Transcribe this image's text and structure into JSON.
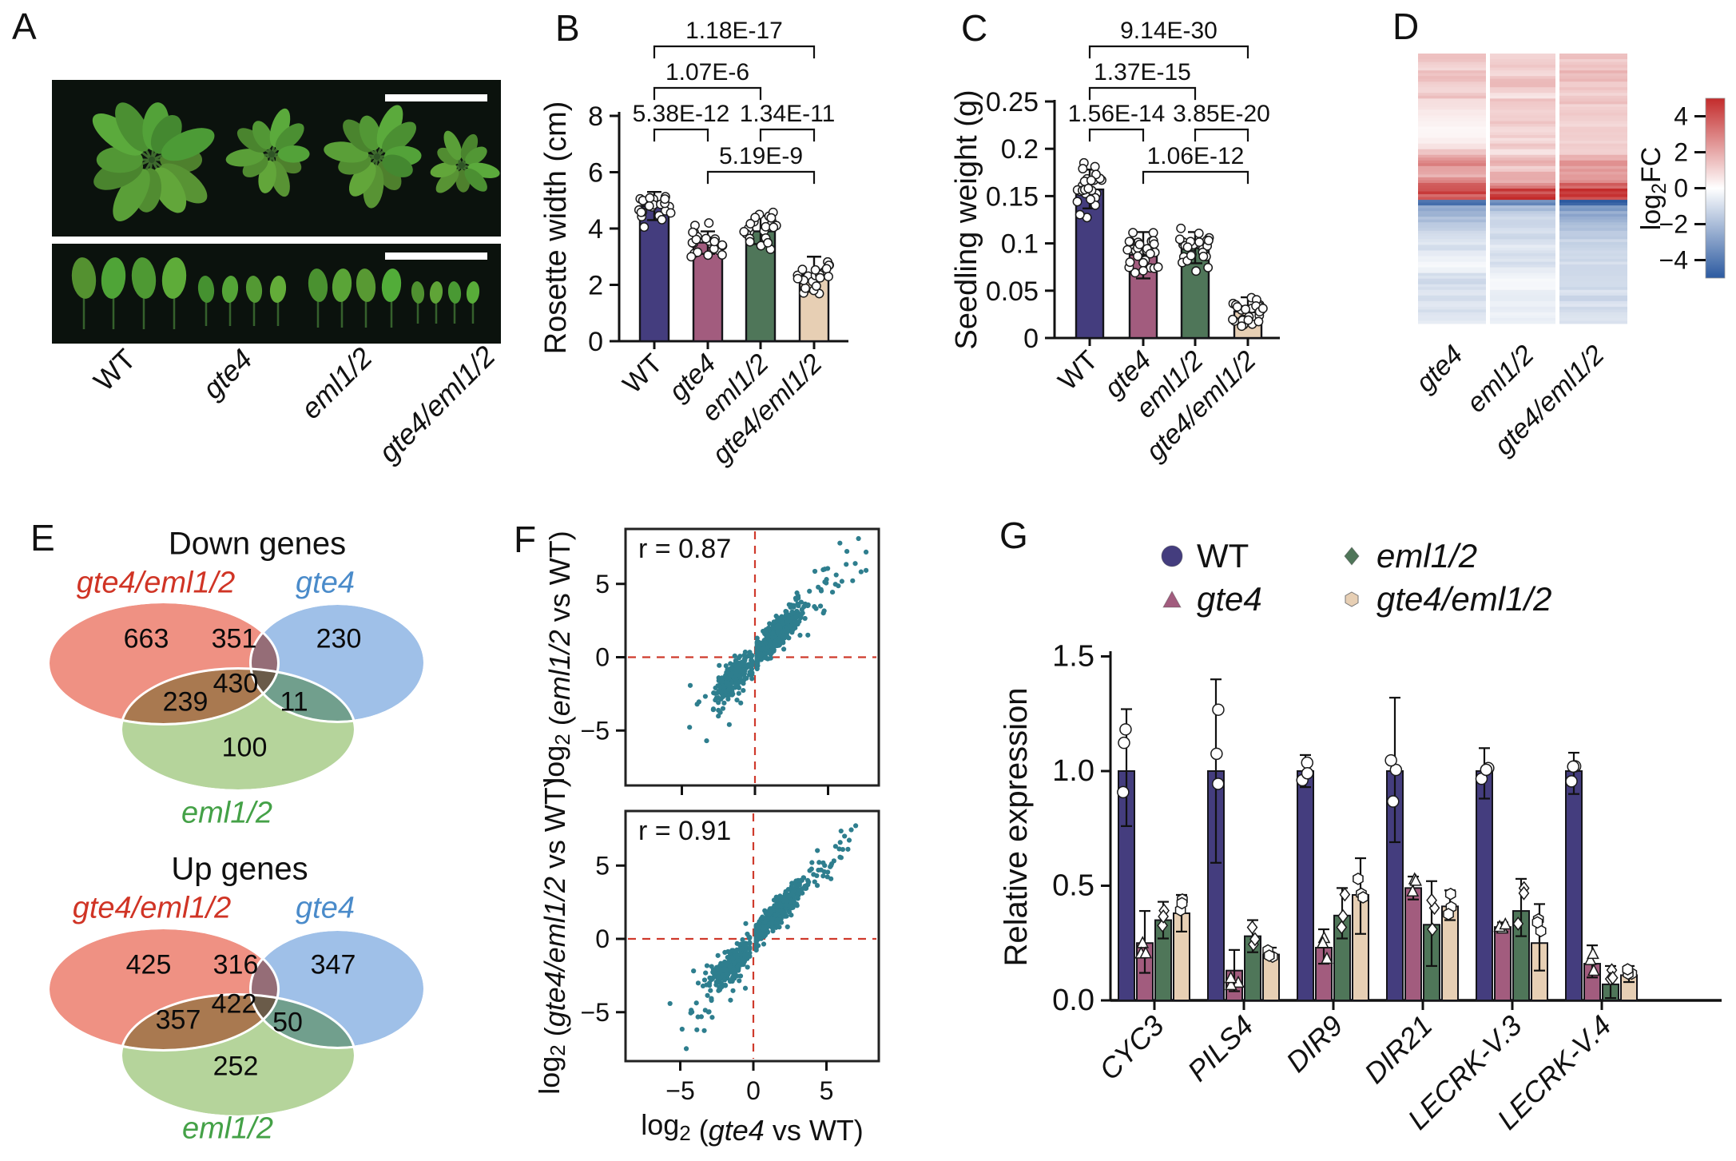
{
  "figure": {
    "panels": {
      "a": {
        "letter": "A",
        "labels": [
          "WT",
          "gte4",
          "eml1/2",
          "gte4/eml1/2"
        ],
        "labels_italic": [
          false,
          true,
          true,
          true
        ]
      },
      "b": {
        "letter": "B"
      },
      "c": {
        "letter": "C"
      },
      "d": {
        "letter": "D"
      },
      "e": {
        "letter": "E"
      },
      "f": {
        "letter": "F"
      },
      "g": {
        "letter": "G"
      }
    }
  },
  "chart_data": {
    "rosette_width": {
      "type": "bar",
      "ylabel": "Rosette width (cm)",
      "categories": [
        "WT",
        "gte4",
        "eml1/2",
        "gte4/eml1/2"
      ],
      "categories_italic": [
        false,
        true,
        true,
        true
      ],
      "values": [
        4.8,
        3.5,
        3.9,
        2.35
      ],
      "errors_hi": [
        5.3,
        3.9,
        4.45,
        3.0
      ],
      "errors_lo": [
        4.3,
        3.1,
        3.45,
        1.75
      ],
      "ylim": [
        0,
        8
      ],
      "yticks": [
        0,
        2,
        4,
        6,
        8
      ],
      "ytick_labels": [
        "0",
        "2",
        "4",
        "6",
        "8"
      ],
      "bar_colors": [
        "#443d7e",
        "#a25c7e",
        "#4f7659",
        "#e7cfb4"
      ],
      "n_points_per_bar": 22,
      "significance": [
        {
          "label": "1.18E-17",
          "from": 0,
          "to": 3,
          "level": 0
        },
        {
          "label": "1.07E-6",
          "from": 0,
          "to": 2,
          "level": 1
        },
        {
          "label": "5.38E-12",
          "from": 0,
          "to": 1,
          "level": 2
        },
        {
          "label": "1.34E-11",
          "from": 2,
          "to": 3,
          "level": 2
        },
        {
          "label": "5.19E-9",
          "from": 1,
          "to": 3,
          "level": 3
        }
      ]
    },
    "seedling_weight": {
      "type": "bar",
      "ylabel": "Seedling weight (g)",
      "categories": [
        "WT",
        "gte4",
        "eml1/2",
        "gte4/eml1/2"
      ],
      "categories_italic": [
        false,
        true,
        true,
        true
      ],
      "values": [
        0.157,
        0.088,
        0.095,
        0.028
      ],
      "errors_hi": [
        0.178,
        0.112,
        0.112,
        0.043
      ],
      "errors_lo": [
        0.137,
        0.063,
        0.079,
        0.015
      ],
      "ylim": [
        0,
        0.25
      ],
      "yticks": [
        0,
        0.05,
        0.1,
        0.15,
        0.2,
        0.25
      ],
      "ytick_labels": [
        "0",
        "0.05",
        "0.1",
        "0.15",
        "0.2",
        "0.25"
      ],
      "bar_colors": [
        "#443d7e",
        "#a25c7e",
        "#4f7659",
        "#e7cfb4"
      ],
      "n_points_per_bar": 26,
      "significance": [
        {
          "label": "9.14E-30",
          "from": 0,
          "to": 3,
          "level": 0
        },
        {
          "label": "1.37E-15",
          "from": 0,
          "to": 2,
          "level": 1
        },
        {
          "label": "1.56E-14",
          "from": 0,
          "to": 1,
          "level": 2
        },
        {
          "label": "3.85E-20",
          "from": 2,
          "to": 3,
          "level": 2
        },
        {
          "label": "1.06E-12",
          "from": 1,
          "to": 3,
          "level": 3
        }
      ]
    },
    "heatmap": {
      "type": "heatmap",
      "columns": [
        "gte4",
        "eml1/2",
        "gte4/eml1/2"
      ],
      "colorbar": {
        "label_prefix": "log",
        "label_sub": "2",
        "label_suffix": "FC",
        "ticks": [
          4,
          2,
          0,
          -2,
          -4
        ],
        "tick_labels": [
          "4",
          "2",
          "0",
          "−2",
          "−4"
        ],
        "max_color": "#c32b2b",
        "min_color": "#2c5aa0",
        "vmax": 5
      },
      "rows": [
        [
          1.1,
          0.8,
          1.0
        ],
        [
          0.9,
          0.7,
          0.9
        ],
        [
          0.7,
          0.9,
          1.1
        ],
        [
          1.2,
          0.6,
          1.2
        ],
        [
          1.4,
          1.1,
          1.3
        ],
        [
          0.8,
          1.2,
          0.9
        ],
        [
          0.6,
          0.8,
          1.0
        ],
        [
          1.0,
          0.4,
          0.8
        ],
        [
          0.5,
          1.0,
          1.1
        ],
        [
          0.4,
          0.9,
          0.7
        ],
        [
          0.3,
          0.7,
          0.9
        ],
        [
          0.2,
          0.8,
          0.8
        ],
        [
          0.15,
          1.0,
          0.7
        ],
        [
          0.1,
          0.6,
          0.9
        ],
        [
          0.1,
          0.8,
          0.8
        ],
        [
          0.2,
          0.5,
          0.7
        ],
        [
          0.5,
          0.9,
          1.0
        ],
        [
          0.9,
          0.4,
          0.9
        ],
        [
          1.8,
          1.1,
          1.6
        ],
        [
          2.4,
          1.3,
          2.2
        ],
        [
          2.0,
          0.9,
          1.9
        ],
        [
          1.5,
          1.4,
          2.1
        ],
        [
          2.2,
          1.6,
          2.4
        ],
        [
          3.2,
          2.6,
          3.3
        ],
        [
          4.2,
          4.5,
          4.3
        ],
        [
          3.8,
          4.8,
          4.1
        ],
        [
          -3.6,
          -3.0,
          -4.4
        ],
        [
          -2.2,
          -1.5,
          -2.6
        ],
        [
          -1.8,
          -1.1,
          -2.2
        ],
        [
          -1.5,
          -0.9,
          -1.9
        ],
        [
          -1.2,
          -0.8,
          -1.6
        ],
        [
          -0.9,
          -0.7,
          -1.3
        ],
        [
          -0.7,
          -0.9,
          -1.1
        ],
        [
          -0.5,
          -0.6,
          -0.9
        ],
        [
          -0.8,
          -0.4,
          -1.1
        ],
        [
          -0.3,
          -0.7,
          -0.9
        ],
        [
          -0.2,
          -0.5,
          -0.8
        ],
        [
          -0.1,
          -0.6,
          -0.7
        ],
        [
          -0.2,
          -0.3,
          -0.8
        ],
        [
          -0.6,
          -0.2,
          -0.9
        ],
        [
          -0.8,
          -0.1,
          -0.7
        ],
        [
          -0.6,
          -0.1,
          -0.8
        ],
        [
          -0.5,
          -0.3,
          -0.6
        ],
        [
          -0.7,
          -0.4,
          -0.9
        ],
        [
          -0.4,
          -0.2,
          -0.5
        ],
        [
          -0.6,
          -0.3,
          -0.7
        ],
        [
          -0.5,
          -0.2,
          -0.6
        ],
        [
          -0.4,
          -0.3,
          -0.5
        ]
      ]
    },
    "venn_down": {
      "type": "venn",
      "title": "Down genes",
      "sets": {
        "A": "gte4/eml1/2",
        "B": "gte4",
        "C": "eml1/2"
      },
      "set_label_colors": {
        "A": "#d03425",
        "B": "#4a8bca",
        "C": "#44a147"
      },
      "ellipse_fills": {
        "A": "#ef9183",
        "B": "#9fc0e8",
        "C": "#b5d49b"
      },
      "regions": {
        "A_only": 663,
        "AB": 351,
        "B_only": 230,
        "AC": 239,
        "ABC": 430,
        "BC": 11,
        "C_only": 100
      }
    },
    "venn_up": {
      "type": "venn",
      "title": "Up genes",
      "sets": {
        "A": "gte4/eml1/2",
        "B": "gte4",
        "C": "eml1/2"
      },
      "set_label_colors": {
        "A": "#d03425",
        "B": "#4a8bca",
        "C": "#44a147"
      },
      "ellipse_fills": {
        "A": "#ef9183",
        "B": "#9fc0e8",
        "C": "#b5d49b"
      },
      "regions": {
        "A_only": 425,
        "AB": 316,
        "B_only": 347,
        "AC": 357,
        "ABC": 422,
        "BC": 50,
        "C_only": 252
      }
    },
    "scatter_top": {
      "type": "scatter",
      "r_label": "r = 0.87",
      "ylabel_parts": [
        [
          "n",
          "log"
        ],
        [
          "sub",
          "2"
        ],
        [
          "n",
          " ("
        ],
        [
          "i",
          "eml1/2"
        ],
        [
          "n",
          " vs WT)"
        ]
      ],
      "ytick_values": [
        5,
        0,
        -5
      ],
      "ytick_labels": [
        "5",
        "0",
        "−5"
      ],
      "xtick_values": [
        -5,
        0,
        5
      ],
      "point_color": "#2e7e8e",
      "dash_color": "#cf3a2c",
      "seed": 11,
      "clusters": [
        {
          "n": 420,
          "cx": 1.35,
          "sx": 0.85,
          "slope": 1.0,
          "intercept": 0.05,
          "sy": 0.5,
          "xmin": 0.15,
          "xmax": 7.6
        },
        {
          "n": 60,
          "cx": 3.8,
          "sx": 1.5,
          "slope": 0.95,
          "intercept": 0.2,
          "sy": 0.85,
          "xmin": 1.2,
          "xmax": 7.6
        },
        {
          "n": 225,
          "cx": -1.35,
          "sx": 0.65,
          "slope": 0.78,
          "intercept": -0.3,
          "sy": 0.5,
          "xmin": -3.4,
          "xmax": -0.2
        },
        {
          "n": 40,
          "cx": -2.3,
          "sx": 1.2,
          "slope": 0.85,
          "intercept": -0.5,
          "sy": 1.1,
          "xmin": -5.3,
          "xmax": -0.3
        }
      ]
    },
    "scatter_bottom": {
      "type": "scatter",
      "r_label": "r = 0.91",
      "ylabel_parts": [
        [
          "n",
          "log"
        ],
        [
          "sub",
          "2"
        ],
        [
          "n",
          " ("
        ],
        [
          "i",
          "gte4/eml1/2"
        ],
        [
          "n",
          " vs WT)"
        ]
      ],
      "xlabel_parts": [
        [
          "n",
          "log"
        ],
        [
          "sub",
          "2"
        ],
        [
          "n",
          " ("
        ],
        [
          "i",
          "gte4"
        ],
        [
          "n",
          " vs WT)"
        ]
      ],
      "ytick_values": [
        5,
        0,
        -5
      ],
      "ytick_labels": [
        "5",
        "0",
        "−5"
      ],
      "xtick_values": [
        -5,
        0,
        5
      ],
      "xtick_labels": [
        "−5",
        "0",
        "5"
      ],
      "point_color": "#2e7e8e",
      "dash_color": "#cf3a2c",
      "seed": 29,
      "clusters": [
        {
          "n": 430,
          "cx": 1.5,
          "sx": 0.9,
          "slope": 1.02,
          "intercept": 0.1,
          "sy": 0.45,
          "xmin": 0.2,
          "xmax": 7.0
        },
        {
          "n": 55,
          "cx": 4.0,
          "sx": 1.4,
          "slope": 1.0,
          "intercept": 0.1,
          "sy": 0.7,
          "xmin": 1.2,
          "xmax": 7.0
        },
        {
          "n": 235,
          "cx": -1.45,
          "sx": 0.65,
          "slope": 0.9,
          "intercept": -0.4,
          "sy": 0.55,
          "xmin": -3.6,
          "xmax": -0.25
        },
        {
          "n": 45,
          "cx": -2.7,
          "sx": 1.3,
          "slope": 1.05,
          "intercept": -0.7,
          "sy": 1.2,
          "xmin": -5.7,
          "xmax": -0.4
        }
      ]
    },
    "relative_expression": {
      "type": "bar",
      "ylabel": "Relative expression",
      "categories": [
        "CYC3",
        "PILS4",
        "DIR9",
        "DIR21",
        "LECRK-V.3",
        "LECRK-V.4"
      ],
      "yticks": [
        0,
        0.5,
        1.0,
        1.5
      ],
      "ytick_labels": [
        "0.0",
        "0.5",
        "1.0",
        "1.5"
      ],
      "series": [
        {
          "name": "WT",
          "color": "#443d7e",
          "marker": "circle",
          "values": [
            1.0,
            1.0,
            1.0,
            1.0,
            1.0,
            1.0
          ],
          "err_hi": [
            1.27,
            1.4,
            1.07,
            1.32,
            1.1,
            1.08
          ],
          "err_lo": [
            0.76,
            0.6,
            0.93,
            0.69,
            0.88,
            0.9
          ]
        },
        {
          "name": "gte4",
          "color": "#a25c7e",
          "marker": "triangle",
          "values": [
            0.25,
            0.13,
            0.23,
            0.49,
            0.32,
            0.16
          ],
          "err_hi": [
            0.39,
            0.22,
            0.31,
            0.54,
            0.34,
            0.24
          ],
          "err_lo": [
            0.12,
            0.04,
            0.16,
            0.44,
            0.3,
            0.1
          ]
        },
        {
          "name": "eml1/2",
          "color": "#4f7659",
          "marker": "diamond",
          "values": [
            0.35,
            0.28,
            0.37,
            0.33,
            0.39,
            0.07
          ],
          "err_hi": [
            0.43,
            0.35,
            0.49,
            0.52,
            0.53,
            0.15
          ],
          "err_lo": [
            0.27,
            0.21,
            0.27,
            0.15,
            0.28,
            0.01
          ]
        },
        {
          "name": "gte4/eml1/2",
          "color": "#e7cfb4",
          "marker": "hexagon",
          "values": [
            0.38,
            0.2,
            0.46,
            0.41,
            0.25,
            0.11
          ],
          "err_hi": [
            0.46,
            0.23,
            0.62,
            0.48,
            0.42,
            0.15
          ],
          "err_lo": [
            0.3,
            0.18,
            0.29,
            0.35,
            0.13,
            0.08
          ]
        }
      ]
    }
  }
}
